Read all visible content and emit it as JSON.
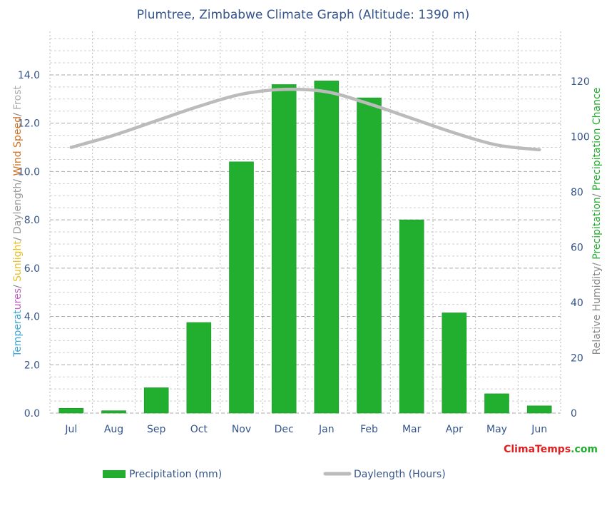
{
  "chart_data": {
    "type": "bar",
    "title": "Plumtree, Zimbabwe Climate Graph (Altitude: 1390 m)",
    "categories": [
      "Jul",
      "Aug",
      "Sep",
      "Oct",
      "Nov",
      "Dec",
      "Jan",
      "Feb",
      "Mar",
      "Apr",
      "May",
      "Jun"
    ],
    "series": [
      {
        "name": "Precipitation (mm)",
        "type": "bar",
        "axis": "left",
        "color": "#22ae2f",
        "values": [
          0.2,
          0.1,
          1.05,
          3.75,
          10.4,
          13.6,
          13.75,
          13.05,
          8.0,
          4.15,
          0.8,
          0.3
        ]
      },
      {
        "name": "Daylength (Hours)",
        "type": "line",
        "axis": "left",
        "color": "#bbbbbb",
        "values": [
          11.0,
          11.5,
          12.1,
          12.7,
          13.2,
          13.4,
          13.3,
          12.8,
          12.2,
          11.6,
          11.1,
          10.9
        ]
      }
    ],
    "yleft": {
      "min": 0,
      "max": 15.8,
      "ticks": [
        0,
        2,
        4,
        6,
        8,
        10,
        12,
        14
      ],
      "tick_labels": [
        "0.0",
        "2.0",
        "4.0",
        "6.0",
        "8.0",
        "10.0",
        "12.0",
        "14.0"
      ],
      "label_parts": [
        {
          "text": "Temperat",
          "color": "#3fa6d8"
        },
        {
          "text": "ures",
          "color": "#c060c0"
        },
        {
          "text": "/",
          "color": "#888888"
        },
        {
          "text": " Sunlight",
          "color": "#e8c020"
        },
        {
          "text": "/",
          "color": "#888888"
        },
        {
          "text": " Daylength",
          "color": "#999999"
        },
        {
          "text": "/",
          "color": "#888888"
        },
        {
          "text": " Wind Speed",
          "color": "#d07020"
        },
        {
          "text": "/",
          "color": "#888888"
        },
        {
          "text": " Frost",
          "color": "#aaaaaa"
        }
      ]
    },
    "yright": {
      "min": 0,
      "max": 138,
      "ticks": [
        0,
        20,
        40,
        60,
        80,
        100,
        120
      ],
      "tick_labels": [
        "0",
        "20",
        "40",
        "60",
        "80",
        "100",
        "120"
      ],
      "label_parts": [
        {
          "text": "Relative Humidity",
          "color": "#888888"
        },
        {
          "text": "/ ",
          "color": "#888888"
        },
        {
          "text": "Precipitation",
          "color": "#22ae2f"
        },
        {
          "text": "/ ",
          "color": "#888888"
        },
        {
          "text": "Precipitation Chance",
          "color": "#22ae2f"
        }
      ]
    },
    "grid": true,
    "legend_position": "bottom",
    "brand": {
      "parts": [
        {
          "text": "Clima",
          "color": "#e02020"
        },
        {
          "text": "Temps",
          "color": "#e02020"
        },
        {
          "text": ".com",
          "color": "#22ae2f"
        }
      ]
    }
  }
}
